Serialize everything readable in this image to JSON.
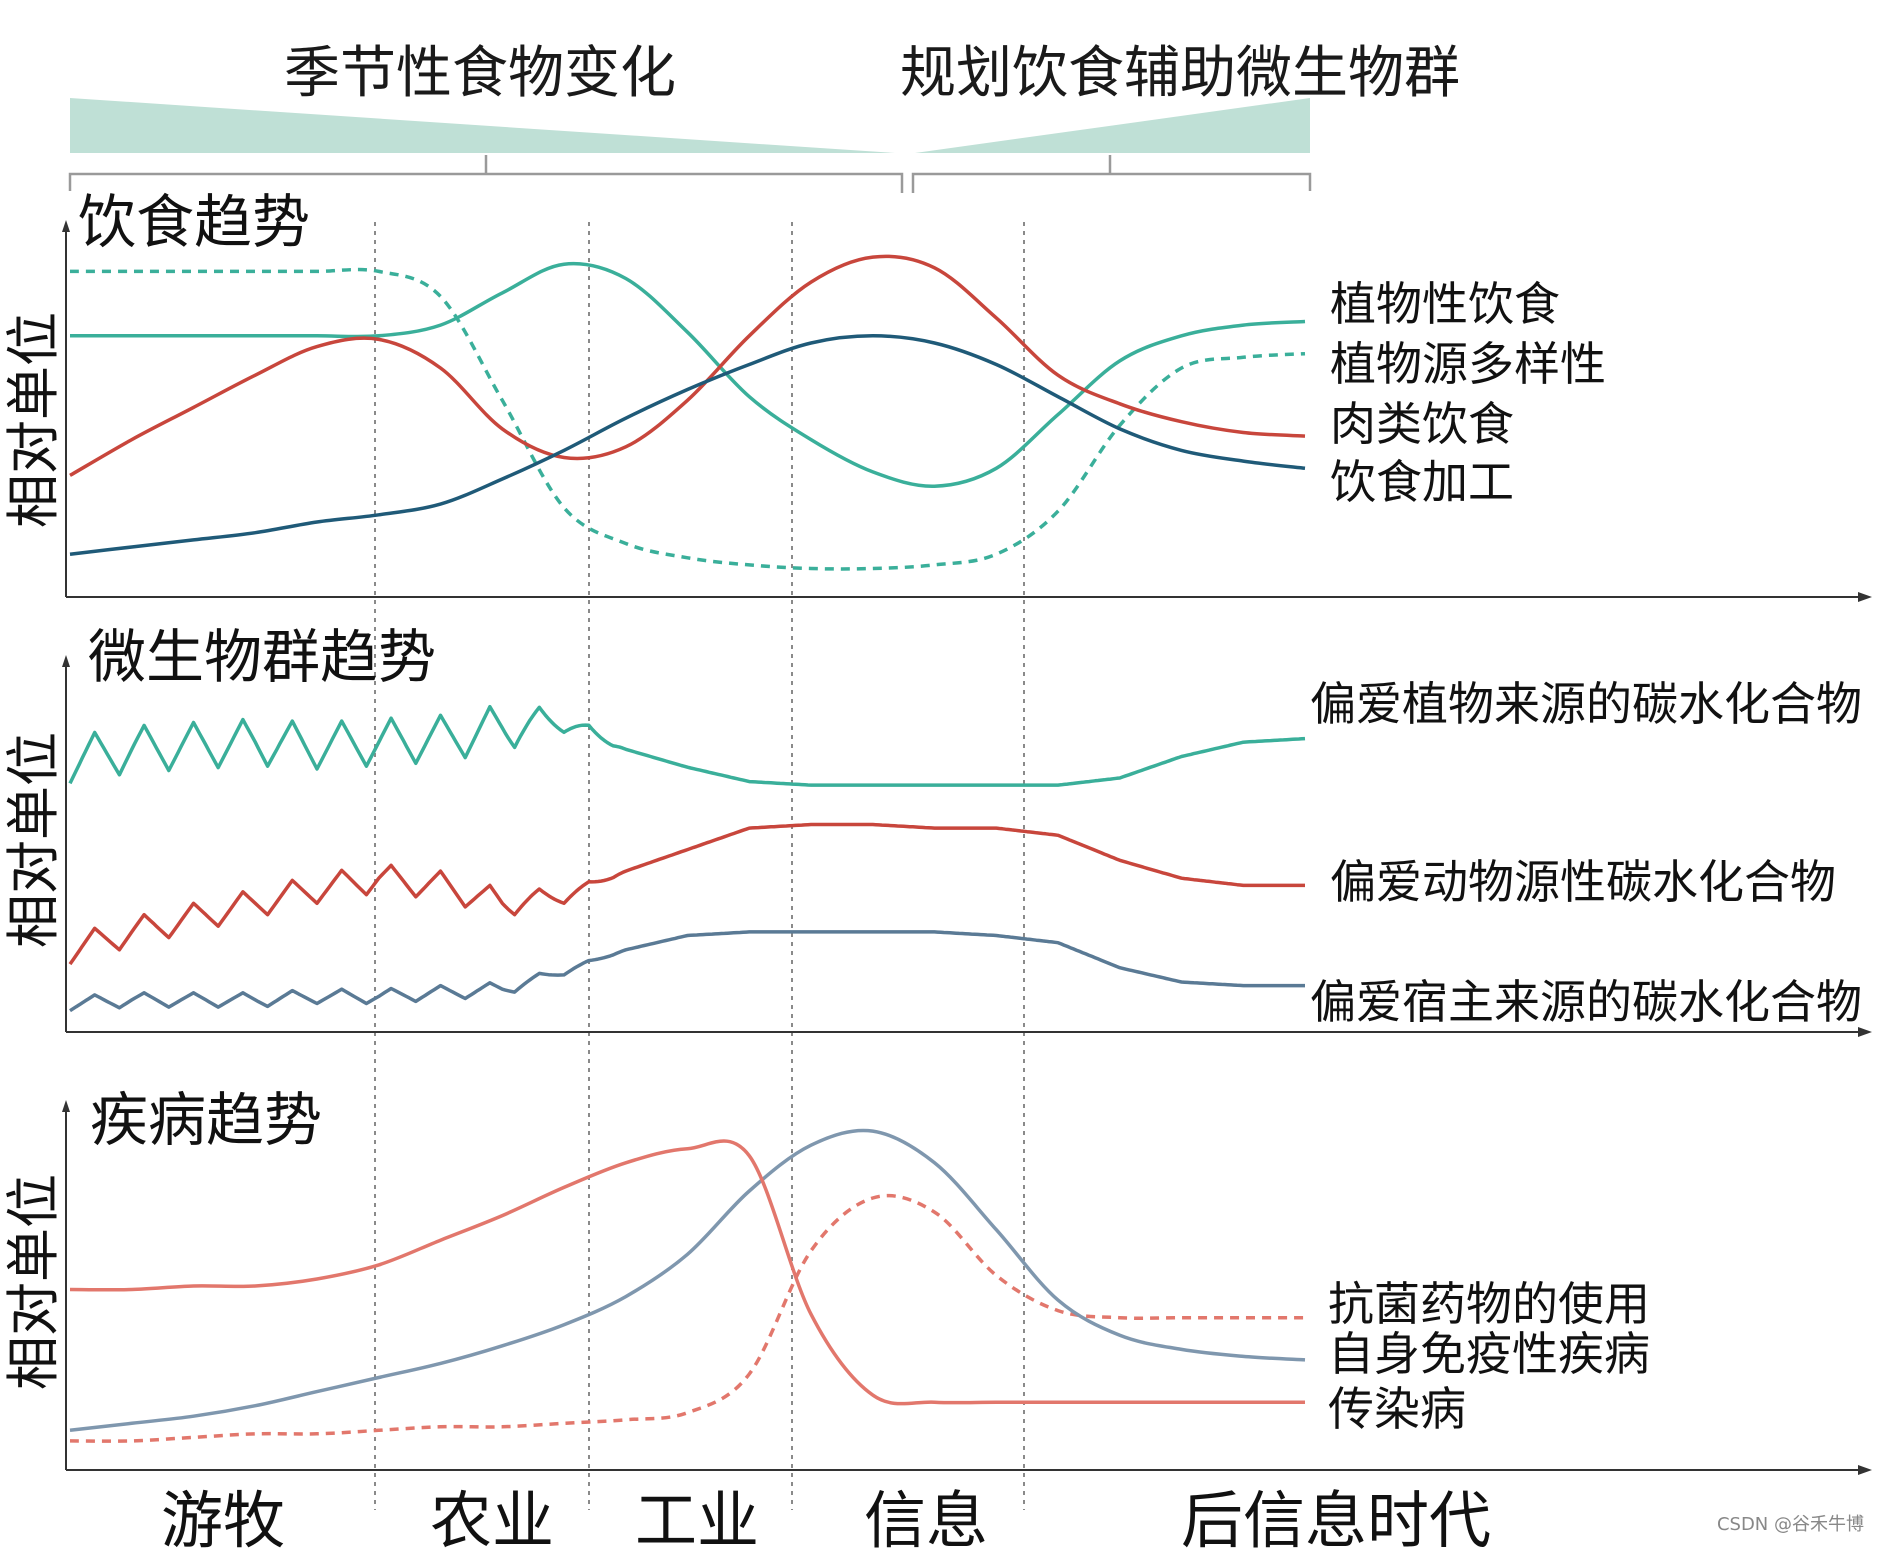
{
  "header": {
    "left_label": "季节性食物变化",
    "right_label": "规划饮食辅助微生物群"
  },
  "y_axis_label": "相对单位",
  "eras": [
    "游牧",
    "农业",
    "工业",
    "信息",
    "后信息时代"
  ],
  "watermark": "CSDN @谷禾牛博",
  "colors": {
    "teal": "#3aaf9a",
    "red": "#c8463c",
    "navy": "#1f5a78",
    "slate": "#5a7a95",
    "salmon": "#e2776c",
    "slate_light": "#7f97ae",
    "wedge": "#bfe0d6"
  },
  "chart_data": [
    {
      "type": "line",
      "title": "饮食趋势",
      "ylabel": "相对单位",
      "x": [
        0,
        1,
        2,
        3,
        4,
        5,
        6,
        7,
        8,
        9,
        10,
        11,
        12,
        13,
        14,
        15,
        16,
        17,
        18,
        19,
        20
      ],
      "ylim": [
        0,
        10
      ],
      "series": [
        {
          "name": "植物性饮食",
          "color": "#3aaf9a",
          "dash": false,
          "values": [
            7.1,
            7.1,
            7.1,
            7.1,
            7.1,
            7.1,
            7.4,
            8.3,
            9.1,
            8.7,
            7.2,
            5.4,
            4.2,
            3.3,
            2.9,
            3.4,
            4.9,
            6.4,
            7.1,
            7.4,
            7.5
          ]
        },
        {
          "name": "植物源多样性",
          "color": "#3aaf9a",
          "dash": true,
          "values": [
            8.9,
            8.9,
            8.9,
            8.9,
            8.9,
            8.9,
            8.2,
            5.3,
            2.3,
            1.3,
            0.9,
            0.7,
            0.6,
            0.6,
            0.7,
            1.0,
            2.2,
            4.6,
            6.2,
            6.5,
            6.6
          ]
        },
        {
          "name": "肉类饮食",
          "color": "#c8463c",
          "dash": false,
          "values": [
            3.2,
            4.2,
            5.1,
            6.0,
            6.8,
            7.0,
            6.2,
            4.5,
            3.7,
            4.0,
            5.3,
            7.1,
            8.6,
            9.3,
            9.0,
            7.6,
            6.0,
            5.2,
            4.7,
            4.4,
            4.3
          ]
        },
        {
          "name": "饮食加工",
          "color": "#1f5a78",
          "dash": false,
          "values": [
            1.0,
            1.2,
            1.4,
            1.6,
            1.9,
            2.1,
            2.4,
            3.1,
            3.9,
            4.8,
            5.6,
            6.3,
            6.9,
            7.1,
            6.9,
            6.3,
            5.4,
            4.5,
            3.9,
            3.6,
            3.4
          ]
        }
      ]
    },
    {
      "type": "line",
      "title": "微生物群趋势",
      "ylabel": "相对单位",
      "x": [
        0,
        1,
        2,
        3,
        4,
        5,
        6,
        7,
        8,
        9,
        10,
        11,
        12,
        13,
        14,
        15,
        16,
        17,
        18,
        19,
        20
      ],
      "ylim": [
        0,
        10
      ],
      "series": [
        {
          "name": "偏爱植物来源的碳水化合物",
          "color": "#3aaf9a",
          "dash": false,
          "oscillation": 1.3,
          "values": [
            7.4,
            7.7,
            7.8,
            7.9,
            7.8,
            7.9,
            8.0,
            8.3,
            8.5,
            7.7,
            7.2,
            6.8,
            6.7,
            6.7,
            6.7,
            6.7,
            6.7,
            6.9,
            7.5,
            7.9,
            8.0
          ]
        },
        {
          "name": "偏爱动物源性碳水化合物",
          "color": "#c8463c",
          "dash": false,
          "oscillation": 0.8,
          "values": [
            2.1,
            2.6,
            3.0,
            3.4,
            3.8,
            4.1,
            3.9,
            3.4,
            3.6,
            4.3,
            4.9,
            5.5,
            5.6,
            5.6,
            5.5,
            5.5,
            5.3,
            4.6,
            4.1,
            3.9,
            3.9
          ]
        },
        {
          "name": "偏爱宿主来源的碳水化合物",
          "color": "#5a7a95",
          "dash": false,
          "oscillation": 0.4,
          "values": [
            0.6,
            0.7,
            0.7,
            0.7,
            0.8,
            0.8,
            0.9,
            1.0,
            1.5,
            2.1,
            2.5,
            2.6,
            2.6,
            2.6,
            2.6,
            2.5,
            2.3,
            1.6,
            1.2,
            1.1,
            1.1
          ]
        }
      ]
    },
    {
      "type": "line",
      "title": "疾病趋势",
      "ylabel": "相对单位",
      "x": [
        0,
        1,
        2,
        3,
        4,
        5,
        6,
        7,
        8,
        9,
        10,
        11,
        12,
        13,
        14,
        15,
        16,
        17,
        18,
        19,
        20
      ],
      "ylim": [
        0,
        10
      ],
      "series": [
        {
          "name": "抗菌药物的使用",
          "color": "#e2776c",
          "dash": true,
          "values": [
            0.6,
            0.6,
            0.7,
            0.8,
            0.8,
            0.9,
            1.0,
            1.0,
            1.1,
            1.2,
            1.4,
            2.5,
            6.0,
            7.5,
            7.1,
            5.3,
            4.3,
            4.1,
            4.1,
            4.1,
            4.1
          ]
        },
        {
          "name": "自身免疫性疾病",
          "color": "#7f97ae",
          "dash": false,
          "values": [
            0.9,
            1.1,
            1.3,
            1.6,
            2.0,
            2.4,
            2.8,
            3.3,
            3.9,
            4.7,
            5.9,
            7.7,
            9.0,
            9.4,
            8.5,
            6.6,
            4.6,
            3.6,
            3.2,
            3.0,
            2.9
          ]
        },
        {
          "name": "传染病",
          "color": "#e2776c",
          "dash": false,
          "values": [
            4.9,
            4.9,
            5.0,
            5.0,
            5.2,
            5.6,
            6.3,
            7.0,
            7.8,
            8.5,
            8.9,
            8.7,
            4.2,
            1.9,
            1.7,
            1.7,
            1.7,
            1.7,
            1.7,
            1.7,
            1.7
          ]
        }
      ]
    }
  ]
}
